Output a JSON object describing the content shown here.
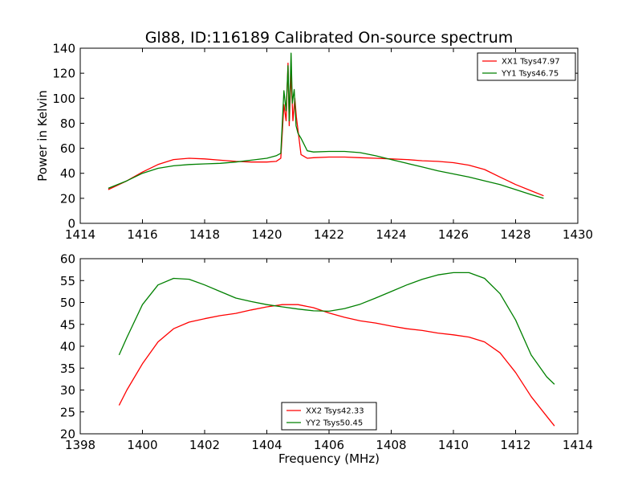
{
  "figure": {
    "title": "Gl88, ID:116189 Calibrated On-source spectrum"
  },
  "chart_data": [
    {
      "type": "line",
      "title": "Gl88, ID:116189 Calibrated On-source spectrum",
      "xlabel": "",
      "ylabel": "Power in Kelvin",
      "xlim": [
        1414,
        1430
      ],
      "ylim": [
        0,
        140
      ],
      "xticks": [
        "1414",
        "1416",
        "1418",
        "1420",
        "1422",
        "1424",
        "1426",
        "1428",
        "1430"
      ],
      "yticks": [
        "0",
        "20",
        "40",
        "60",
        "80",
        "100",
        "120",
        "140"
      ],
      "xtick_values": [
        1414,
        1416,
        1418,
        1420,
        1422,
        1424,
        1426,
        1428,
        1430
      ],
      "ytick_values": [
        0,
        20,
        40,
        60,
        80,
        100,
        120,
        140
      ],
      "grid": false,
      "legend_position": "top-right",
      "series": [
        {
          "name": "XX1 Tsys47.97",
          "color": "#ff0000",
          "x": [
            1414.9,
            1415.5,
            1416.0,
            1416.5,
            1417.0,
            1417.5,
            1418.0,
            1418.5,
            1419.0,
            1419.5,
            1420.0,
            1420.3,
            1420.45,
            1420.55,
            1420.62,
            1420.68,
            1420.72,
            1420.78,
            1420.84,
            1420.9,
            1420.95,
            1421.1,
            1421.3,
            1421.5,
            1422.0,
            1422.5,
            1423.0,
            1423.5,
            1424.0,
            1424.5,
            1425.0,
            1425.5,
            1426.0,
            1426.5,
            1427.0,
            1427.5,
            1428.0,
            1428.5,
            1428.9
          ],
          "y": [
            27,
            34,
            41,
            47,
            51,
            52,
            51.5,
            50.5,
            49.5,
            49,
            49,
            49.5,
            52,
            95,
            82,
            128,
            78,
            120,
            82,
            100,
            85,
            55,
            52,
            52.5,
            53,
            53,
            52.5,
            52,
            51.5,
            51,
            50,
            49.5,
            48.5,
            46.5,
            43,
            37,
            31,
            26,
            22
          ]
        },
        {
          "name": "YY1 Tsys46.75",
          "color": "#008000",
          "x": [
            1414.9,
            1415.5,
            1416.0,
            1416.5,
            1417.0,
            1417.5,
            1418.0,
            1418.5,
            1419.0,
            1419.5,
            1420.0,
            1420.3,
            1420.45,
            1420.55,
            1420.62,
            1420.68,
            1420.72,
            1420.78,
            1420.82,
            1420.88,
            1420.94,
            1421.0,
            1421.1,
            1421.3,
            1421.5,
            1422.0,
            1422.5,
            1423.0,
            1423.5,
            1424.0,
            1424.5,
            1425.0,
            1425.5,
            1426.0,
            1426.5,
            1427.0,
            1427.5,
            1428.0,
            1428.5,
            1428.9
          ],
          "y": [
            28,
            34,
            40,
            44,
            46,
            47,
            47.5,
            48,
            49,
            50.5,
            52,
            54,
            56,
            106,
            90,
            126,
            82,
            136,
            96,
            107,
            78,
            72,
            68,
            58,
            57,
            57.5,
            57.5,
            56.5,
            54,
            51,
            48,
            45,
            42,
            39.5,
            37,
            34,
            31,
            27,
            23,
            20
          ]
        }
      ]
    },
    {
      "type": "line",
      "title": "",
      "xlabel": "Frequency (MHz)",
      "ylabel": "",
      "xlim": [
        1398,
        1414
      ],
      "ylim": [
        20,
        60
      ],
      "xticks": [
        "1398",
        "1400",
        "1402",
        "1404",
        "1406",
        "1408",
        "1410",
        "1412",
        "1414"
      ],
      "yticks": [
        "20",
        "25",
        "30",
        "35",
        "40",
        "45",
        "50",
        "55",
        "60"
      ],
      "xtick_values": [
        1398,
        1400,
        1402,
        1404,
        1406,
        1408,
        1410,
        1412,
        1414
      ],
      "ytick_values": [
        20,
        25,
        30,
        35,
        40,
        45,
        50,
        55,
        60
      ],
      "grid": false,
      "legend_position": "bottom-center",
      "series": [
        {
          "name": "XX2 Tsys42.33",
          "color": "#ff0000",
          "x": [
            1399.25,
            1399.5,
            1400.0,
            1400.5,
            1401.0,
            1401.5,
            1402.0,
            1402.5,
            1403.0,
            1403.5,
            1404.0,
            1404.5,
            1405.0,
            1405.5,
            1406.0,
            1406.5,
            1407.0,
            1407.5,
            1408.0,
            1408.5,
            1409.0,
            1409.5,
            1410.0,
            1410.5,
            1411.0,
            1411.5,
            1412.0,
            1412.5,
            1413.0,
            1413.25
          ],
          "y": [
            26.5,
            30,
            36,
            41,
            44,
            45.5,
            46.3,
            47,
            47.5,
            48.3,
            49,
            49.5,
            49.5,
            48.8,
            47.6,
            46.6,
            45.8,
            45.3,
            44.6,
            44,
            43.6,
            43,
            42.6,
            42.1,
            41,
            38.5,
            34,
            28.5,
            24,
            21.8
          ]
        },
        {
          "name": "YY2 Tsys50.45",
          "color": "#008000",
          "x": [
            1399.25,
            1399.5,
            1400.0,
            1400.5,
            1401.0,
            1401.5,
            1402.0,
            1402.5,
            1403.0,
            1403.5,
            1404.0,
            1404.5,
            1405.0,
            1405.5,
            1406.0,
            1406.5,
            1407.0,
            1407.5,
            1408.0,
            1408.5,
            1409.0,
            1409.5,
            1410.0,
            1410.5,
            1411.0,
            1411.5,
            1412.0,
            1412.5,
            1413.0,
            1413.25
          ],
          "y": [
            38,
            42,
            49.5,
            54,
            55.5,
            55.3,
            54,
            52.5,
            51,
            50.2,
            49.5,
            49,
            48.5,
            48.1,
            48,
            48.6,
            49.6,
            51,
            52.5,
            54,
            55.3,
            56.3,
            56.8,
            56.8,
            55.5,
            52,
            46,
            38,
            33,
            31.3
          ]
        }
      ]
    }
  ]
}
